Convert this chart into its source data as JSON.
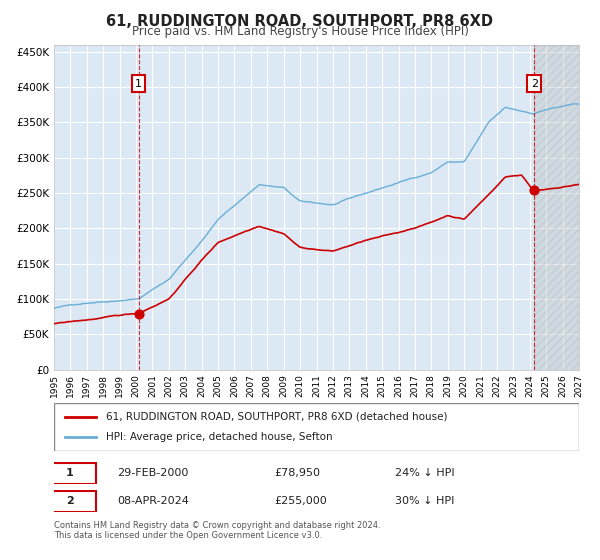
{
  "title": "61, RUDDINGTON ROAD, SOUTHPORT, PR8 6XD",
  "subtitle": "Price paid vs. HM Land Registry's House Price Index (HPI)",
  "title_fontsize": 11,
  "subtitle_fontsize": 9,
  "xlim": [
    1995.0,
    2027.0
  ],
  "ylim": [
    0,
    460000
  ],
  "yticks": [
    0,
    50000,
    100000,
    150000,
    200000,
    250000,
    300000,
    350000,
    400000,
    450000
  ],
  "ytick_labels": [
    "£0",
    "£50K",
    "£100K",
    "£150K",
    "£200K",
    "£250K",
    "£300K",
    "£350K",
    "£400K",
    "£450K"
  ],
  "xticks": [
    1995,
    1996,
    1997,
    1998,
    1999,
    2000,
    2001,
    2002,
    2003,
    2004,
    2005,
    2006,
    2007,
    2008,
    2009,
    2010,
    2011,
    2012,
    2013,
    2014,
    2015,
    2016,
    2017,
    2018,
    2019,
    2020,
    2021,
    2022,
    2023,
    2024,
    2025,
    2026,
    2027
  ],
  "hpi_color": "#6aaed6",
  "price_color": "#cc0000",
  "point1_x": 2000.16,
  "point1_y": 78950,
  "point2_x": 2024.27,
  "point2_y": 255000,
  "vline1_x": 2000.16,
  "vline2_x": 2024.27,
  "label1": "1",
  "label2": "2",
  "legend_label1": "61, RUDDINGTON ROAD, SOUTHPORT, PR8 6XD (detached house)",
  "legend_label2": "HPI: Average price, detached house, Sefton",
  "ann1_date": "29-FEB-2000",
  "ann1_price": "£78,950",
  "ann1_hpi": "24% ↓ HPI",
  "ann2_date": "08-APR-2024",
  "ann2_price": "£255,000",
  "ann2_hpi": "30% ↓ HPI",
  "footer": "Contains HM Land Registry data © Crown copyright and database right 2024.\nThis data is licensed under the Open Government Licence v3.0.",
  "bg_color": "#dce9f5",
  "hatch_color": "#c0c0c0",
  "grid_color": "#ffffff"
}
